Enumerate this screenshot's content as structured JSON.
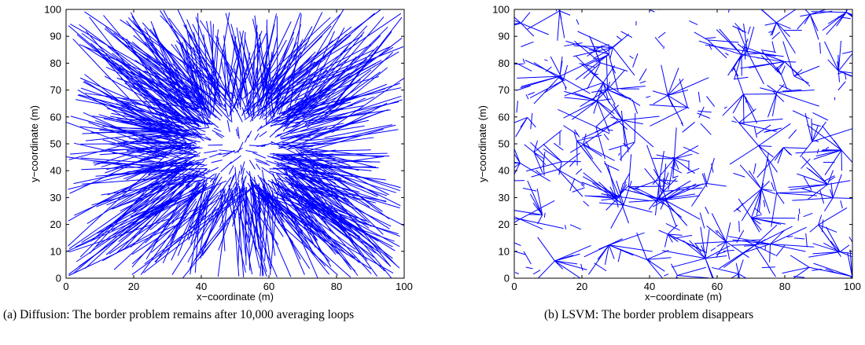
{
  "charts": {
    "chart_data": [
      {
        "id": "a",
        "type": "line",
        "xlabel": "x−coordinate (m)",
        "ylabel": "y−coordinate (m)",
        "xlim": [
          0,
          100
        ],
        "ylim": [
          0,
          100
        ],
        "xticks": [
          "0",
          "20",
          "40",
          "60",
          "80",
          "100"
        ],
        "yticks": [
          "0",
          "10",
          "20",
          "30",
          "40",
          "50",
          "60",
          "70",
          "80",
          "90",
          "100"
        ],
        "grid": false,
        "color": "#0000ff",
        "caption": "(a) Diffusion: The border problem remains after 10,000 averaging loops",
        "description_of_marks": "segments from true node positions to estimated positions, long near borders"
      },
      {
        "id": "b",
        "type": "line",
        "xlabel": "x−coordinate (m)",
        "ylabel": "y−coordinate (m)",
        "xlim": [
          0,
          100
        ],
        "ylim": [
          0,
          100
        ],
        "xticks": [
          "0",
          "20",
          "40",
          "60",
          "80",
          "100"
        ],
        "yticks": [
          "0",
          "10",
          "20",
          "30",
          "40",
          "50",
          "60",
          "70",
          "80",
          "90",
          "100"
        ],
        "grid": false,
        "color": "#0000ff",
        "caption": "(b) LSVM: The border problem disappears"
      }
    ]
  }
}
